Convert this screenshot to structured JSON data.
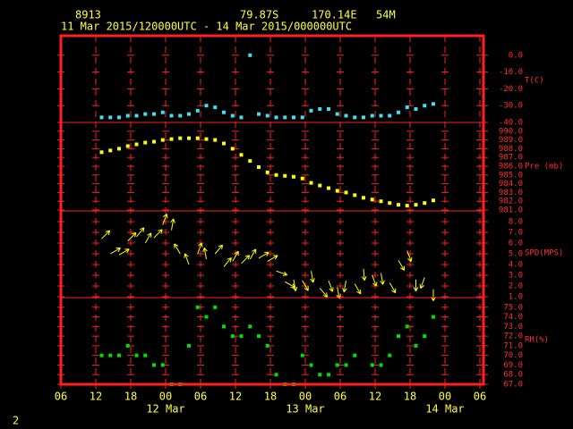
{
  "header": {
    "station": "8913",
    "lat": "79.87S",
    "lon": "170.14E",
    "elev": "54M",
    "period": "11 Mar 2015/120000UTC - 14 Mar 2015/000000UTC",
    "page": "2"
  },
  "time": {
    "xlim": [
      "2015-03-11T06:00",
      "2015-03-14T06:00"
    ],
    "xticks": [
      {
        "value": "2015-03-11T06:00",
        "label": "06"
      },
      {
        "value": "2015-03-11T12:00",
        "label": "12"
      },
      {
        "value": "2015-03-11T18:00",
        "label": "18"
      },
      {
        "value": "2015-03-12T00:00",
        "label": "00"
      },
      {
        "value": "2015-03-12T06:00",
        "label": "06"
      },
      {
        "value": "2015-03-12T12:00",
        "label": "12"
      },
      {
        "value": "2015-03-12T18:00",
        "label": "18"
      },
      {
        "value": "2015-03-13T00:00",
        "label": "00"
      },
      {
        "value": "2015-03-13T06:00",
        "label": "06"
      },
      {
        "value": "2015-03-13T12:00",
        "label": "12"
      },
      {
        "value": "2015-03-13T18:00",
        "label": "18"
      },
      {
        "value": "2015-03-14T00:00",
        "label": "00"
      },
      {
        "value": "2015-03-14T06:00",
        "label": "06"
      }
    ],
    "date_labels": [
      {
        "value": "2015-03-12T00:00",
        "label": "12 Mar"
      },
      {
        "value": "2015-03-13T00:00",
        "label": "13 Mar"
      },
      {
        "value": "2015-03-14T00:00",
        "label": "14 Mar"
      }
    ],
    "x": [
      "2015-03-11T13:00",
      "2015-03-11T14:30",
      "2015-03-11T16:00",
      "2015-03-11T17:30",
      "2015-03-11T19:00",
      "2015-03-11T20:30",
      "2015-03-11T22:00",
      "2015-03-11T23:30",
      "2015-03-12T01:00",
      "2015-03-12T02:30",
      "2015-03-12T04:00",
      "2015-03-12T05:30",
      "2015-03-12T07:00",
      "2015-03-12T08:30",
      "2015-03-12T10:00",
      "2015-03-12T11:30",
      "2015-03-12T13:00",
      "2015-03-12T14:30",
      "2015-03-12T16:00",
      "2015-03-12T17:30",
      "2015-03-12T19:00",
      "2015-03-12T20:30",
      "2015-03-12T22:00",
      "2015-03-12T23:30",
      "2015-03-13T01:00",
      "2015-03-13T02:30",
      "2015-03-13T04:00",
      "2015-03-13T05:30",
      "2015-03-13T07:00",
      "2015-03-13T08:30",
      "2015-03-13T10:00",
      "2015-03-13T11:30",
      "2015-03-13T13:00",
      "2015-03-13T14:30",
      "2015-03-13T16:00",
      "2015-03-13T17:30",
      "2015-03-13T19:00",
      "2015-03-13T20:30",
      "2015-03-13T22:00",
      "2015-03-13T23:30"
    ]
  },
  "chart_data": [
    {
      "type": "scatter",
      "label": "T(C)",
      "color": "#40e0f0",
      "ylim": [
        -40,
        10
      ],
      "yticks": [
        {
          "value": 0,
          "label": "0.0"
        },
        {
          "value": -10,
          "label": "-10.0"
        },
        {
          "value": -20,
          "label": "-20.0"
        },
        {
          "value": -30,
          "label": "-30.0"
        },
        {
          "value": -40,
          "label": "-40.0"
        }
      ],
      "values": [
        -37,
        -37,
        -37,
        -36,
        -36,
        -35,
        -35,
        -34,
        -36,
        -36,
        -35,
        -33,
        -30,
        -31,
        -34,
        -36,
        -37,
        0,
        -35,
        -36,
        -37,
        -37,
        -37,
        -37,
        -33,
        -32,
        -32,
        -35,
        -36,
        -37,
        -37,
        -36,
        -36,
        -36,
        -34,
        -31,
        -32,
        -30,
        -29,
        null
      ]
    },
    {
      "type": "scatter",
      "label": "Pre (mb)",
      "color": "#ffff00",
      "ylim": [
        981,
        991
      ],
      "yticks": [
        {
          "value": 990,
          "label": "990.0"
        },
        {
          "value": 989,
          "label": "989.0"
        },
        {
          "value": 988,
          "label": "988.0"
        },
        {
          "value": 987,
          "label": "987.0"
        },
        {
          "value": 986,
          "label": "986.0"
        },
        {
          "value": 985,
          "label": "985.0"
        },
        {
          "value": 984,
          "label": "984.0"
        },
        {
          "value": 983,
          "label": "983.0"
        },
        {
          "value": 982,
          "label": "982.0"
        },
        {
          "value": 981,
          "label": "981.0"
        }
      ],
      "values": [
        987.6,
        987.8,
        988.0,
        988.3,
        988.5,
        988.7,
        988.8,
        989.0,
        989.1,
        989.2,
        989.2,
        989.2,
        989.1,
        989.0,
        988.6,
        988.0,
        987.3,
        986.6,
        985.9,
        985.3,
        985.0,
        984.9,
        984.8,
        984.6,
        984.1,
        983.8,
        983.5,
        983.2,
        983.0,
        982.7,
        982.4,
        982.2,
        982.0,
        981.8,
        981.6,
        981.5,
        981.6,
        981.8,
        982.1,
        null
      ]
    },
    {
      "type": "wind",
      "label": "SPD(MPS)",
      "color": "#ffff00",
      "ylim": [
        1,
        9
      ],
      "yticks": [
        {
          "value": 8,
          "label": "8.0"
        },
        {
          "value": 7,
          "label": "7.0"
        },
        {
          "value": 6,
          "label": "6.0"
        },
        {
          "value": 5,
          "label": "5.0"
        },
        {
          "value": 4,
          "label": "4.0"
        },
        {
          "value": 3,
          "label": "3.0"
        },
        {
          "value": 2,
          "label": "2.0"
        },
        {
          "value": 1,
          "label": "1.0"
        }
      ],
      "values": [
        6.4,
        5.0,
        4.9,
        6.2,
        6.6,
        6.0,
        6.5,
        7.7,
        7.2,
        5.0,
        4.0,
        5.0,
        4.5,
        5.0,
        3.8,
        4.3,
        4.1,
        4.5,
        4.6,
        4.3,
        3.4,
        2.4,
        2.6,
        2.5,
        3.4,
        1.8,
        2.5,
        1.9,
        2.5,
        2.2,
        3.6,
        3.0,
        3.2,
        2.3,
        4.4,
        5.3,
        2.6,
        2.8,
        1.7,
        null
      ],
      "directions": [
        45,
        60,
        60,
        45,
        40,
        30,
        45,
        20,
        10,
        330,
        340,
        20,
        350,
        40,
        40,
        30,
        45,
        30,
        60,
        60,
        110,
        120,
        170,
        150,
        170,
        140,
        160,
        170,
        190,
        150,
        175,
        160,
        170,
        150,
        150,
        160,
        180,
        200,
        180,
        null
      ]
    },
    {
      "type": "scatter",
      "label": "RH(%)",
      "color": "#00e000",
      "ylim": [
        67,
        76
      ],
      "yticks": [
        {
          "value": 75,
          "label": "75.0"
        },
        {
          "value": 74,
          "label": "74.0"
        },
        {
          "value": 73,
          "label": "73.0"
        },
        {
          "value": 72,
          "label": "72.0"
        },
        {
          "value": 71,
          "label": "71.0"
        },
        {
          "value": 70,
          "label": "70.0"
        },
        {
          "value": 69,
          "label": "69.0"
        },
        {
          "value": 68,
          "label": "68.0"
        },
        {
          "value": 67,
          "label": "67.0"
        }
      ],
      "values": [
        70,
        70,
        70,
        71,
        70,
        70,
        69,
        69,
        67,
        67,
        71,
        75,
        74,
        75,
        73,
        72,
        72,
        73,
        72,
        71,
        68,
        67,
        67,
        70,
        69,
        68,
        68,
        69,
        69,
        70,
        null,
        69,
        69,
        70,
        72,
        73,
        71,
        72,
        74,
        null
      ]
    }
  ]
}
